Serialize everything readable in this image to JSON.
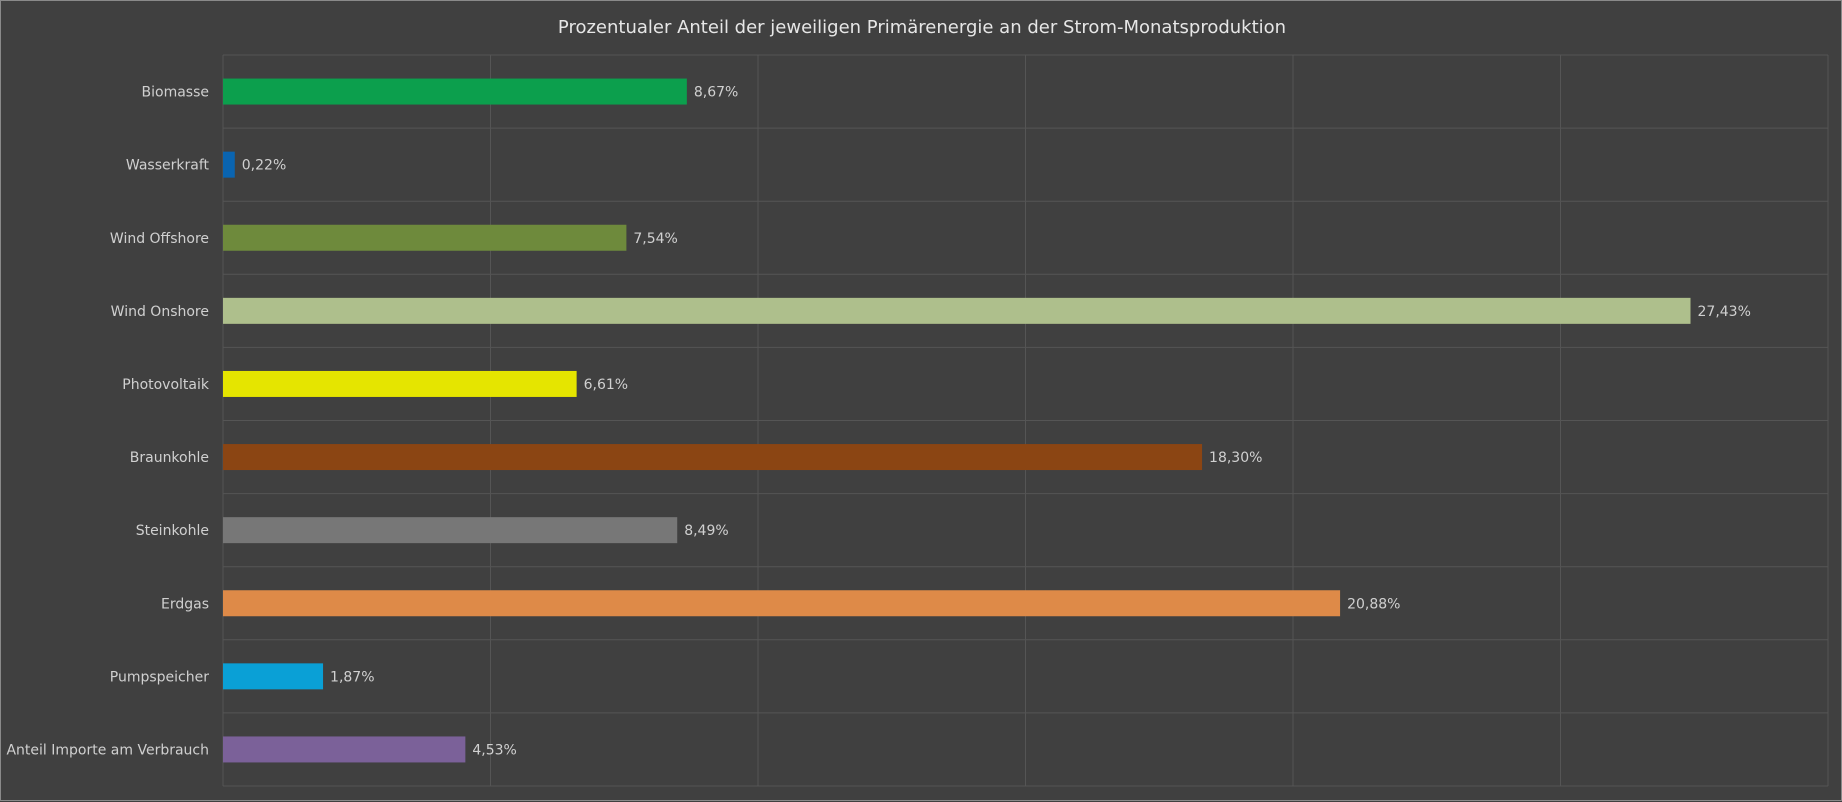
{
  "chart_data": {
    "type": "bar",
    "orientation": "horizontal",
    "title": "Prozentualer Anteil der jeweiligen Primärenergie an der Strom-Monatsproduktion",
    "xlabel": "",
    "ylabel": "",
    "xlim": [
      0,
      30
    ],
    "grid": true,
    "categories": [
      "Biomasse",
      "Wasserkraft",
      "Wind Offshore",
      "Wind Onshore",
      "Photovoltaik",
      "Braunkohle",
      "Steinkohle",
      "Erdgas",
      "Pumpspeicher",
      "Anteil Importe am Verbrauch"
    ],
    "values": [
      8.67,
      0.22,
      7.54,
      27.43,
      6.61,
      18.3,
      8.49,
      20.88,
      1.87,
      4.53
    ],
    "value_labels": [
      "8,67%",
      "0,22%",
      "7,54%",
      "27,43%",
      "6,61%",
      "18,30%",
      "8,49%",
      "20,88%",
      "1,87%",
      "4,53%"
    ],
    "colors": [
      "#0c9f4d",
      "#0a64b0",
      "#6e8a3c",
      "#aebf8c",
      "#e5e500",
      "#8b4513",
      "#777777",
      "#de8a48",
      "#0aa0d6",
      "#7b6199"
    ],
    "background": "#404040",
    "gridline_color": "#555555"
  }
}
